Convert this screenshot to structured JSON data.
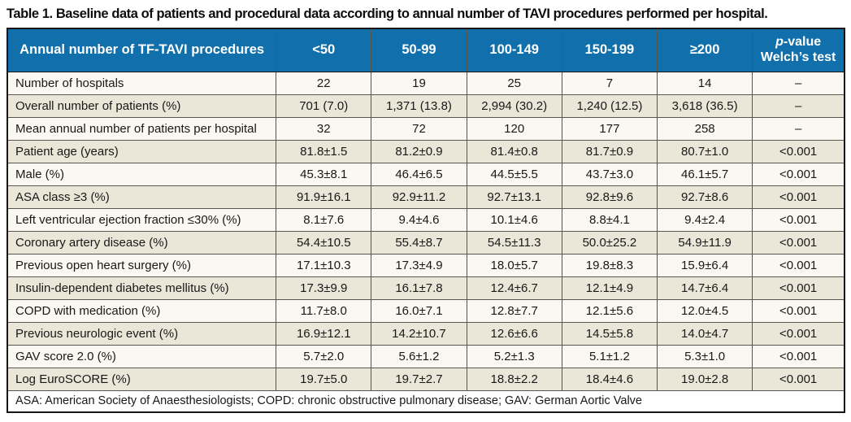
{
  "title": "Table 1. Baseline data of patients and procedural data according to annual number of TAVI procedures performed per hospital.",
  "colors": {
    "header_bg": "#1170ab",
    "header_text": "#ffffff",
    "row_light": "#faf8f1",
    "row_dark": "#eae7d9"
  },
  "table": {
    "header_label": "Annual number of TF-TAVI procedures",
    "group_headers": [
      "<50",
      "50-99",
      "100-149",
      "150-199",
      "≥200"
    ],
    "pvalue_header": {
      "italic": "p",
      "rest": "-value",
      "line2": "Welch’s test"
    },
    "rows": [
      {
        "label": "Number of hospitals",
        "values": [
          "22",
          "19",
          "25",
          "7",
          "14"
        ],
        "p": "–"
      },
      {
        "label": "Overall number of patients (%)",
        "values": [
          "701 (7.0)",
          "1,371 (13.8)",
          "2,994 (30.2)",
          "1,240 (12.5)",
          "3,618 (36.5)"
        ],
        "p": "–"
      },
      {
        "label": "Mean annual number of patients per hospital",
        "values": [
          "32",
          "72",
          "120",
          "177",
          "258"
        ],
        "p": "–"
      },
      {
        "label": "Patient age (years)",
        "values": [
          "81.8±1.5",
          "81.2±0.9",
          "81.4±0.8",
          "81.7±0.9",
          "80.7±1.0"
        ],
        "p": "<0.001"
      },
      {
        "label": "Male (%)",
        "values": [
          "45.3±8.1",
          "46.4±6.5",
          "44.5±5.5",
          "43.7±3.0",
          "46.1±5.7"
        ],
        "p": "<0.001"
      },
      {
        "label": "ASA class ≥3 (%)",
        "values": [
          "91.9±16.1",
          "92.9±11.2",
          "92.7±13.1",
          "92.8±9.6",
          "92.7±8.6"
        ],
        "p": "<0.001"
      },
      {
        "label": "Left ventricular ejection fraction ≤30% (%)",
        "values": [
          "8.1±7.6",
          "9.4±4.6",
          "10.1±4.6",
          "8.8±4.1",
          "9.4±2.4"
        ],
        "p": "<0.001"
      },
      {
        "label": "Coronary artery disease (%)",
        "values": [
          "54.4±10.5",
          "55.4±8.7",
          "54.5±11.3",
          "50.0±25.2",
          "54.9±11.9"
        ],
        "p": "<0.001"
      },
      {
        "label": "Previous open heart surgery (%)",
        "values": [
          "17.1±10.3",
          "17.3±4.9",
          "18.0±5.7",
          "19.8±8.3",
          "15.9±6.4"
        ],
        "p": "<0.001"
      },
      {
        "label": "Insulin-dependent diabetes mellitus (%)",
        "values": [
          "17.3±9.9",
          "16.1±7.8",
          "12.4±6.7",
          "12.1±4.9",
          "14.7±6.4"
        ],
        "p": "<0.001"
      },
      {
        "label": "COPD with medication (%)",
        "values": [
          "11.7±8.0",
          "16.0±7.1",
          "12.8±7.7",
          "12.1±5.6",
          "12.0±4.5"
        ],
        "p": "<0.001"
      },
      {
        "label": "Previous neurologic event (%)",
        "values": [
          "16.9±12.1",
          "14.2±10.7",
          "12.6±6.6",
          "14.5±5.8",
          "14.0±4.7"
        ],
        "p": "<0.001"
      },
      {
        "label": "GAV score 2.0 (%)",
        "values": [
          "5.7±2.0",
          "5.6±1.2",
          "5.2±1.3",
          "5.1±1.2",
          "5.3±1.0"
        ],
        "p": "<0.001"
      },
      {
        "label": "Log EuroSCORE (%)",
        "values": [
          "19.7±5.0",
          "19.7±2.7",
          "18.8±2.2",
          "18.4±4.6",
          "19.0±2.8"
        ],
        "p": "<0.001"
      }
    ],
    "footnote": "ASA: American Society of Anaesthesiologists; COPD: chronic obstructive pulmonary disease; GAV: German Aortic Valve"
  }
}
